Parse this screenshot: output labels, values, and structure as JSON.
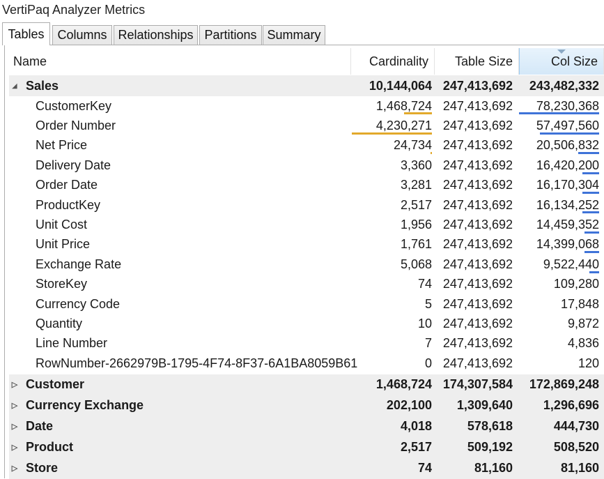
{
  "window": {
    "title": "VertiPaq Analyzer Metrics"
  },
  "tabs": [
    {
      "label": "Tables",
      "active": true
    },
    {
      "label": "Columns",
      "active": false
    },
    {
      "label": "Relationships",
      "active": false
    },
    {
      "label": "Partitions",
      "active": false
    },
    {
      "label": "Summary",
      "active": false
    }
  ],
  "columns": {
    "name": "Name",
    "cardinality": "Cardinality",
    "table_size": "Table Size",
    "col_size": "Col Size",
    "sorted_by": "Col Size",
    "sort_direction": "descending"
  },
  "expanded_table": {
    "name": "Sales",
    "expander_icon": "collapse-triangle-icon",
    "cardinality": "10,144,064",
    "table_size": "247,413,692",
    "col_size": "243,482,332",
    "columns": [
      {
        "name": "CustomerKey",
        "cardinality": "1,468,724",
        "table_size": "247,413,692",
        "col_size": "78,230,368",
        "card_bar": 0.347,
        "col_bar": 1.0
      },
      {
        "name": "Order Number",
        "cardinality": "4,230,271",
        "table_size": "247,413,692",
        "col_size": "57,497,560",
        "card_bar": 1.0,
        "col_bar": 0.735
      },
      {
        "name": "Net Price",
        "cardinality": "24,734",
        "table_size": "247,413,692",
        "col_size": "20,506,832",
        "card_bar": 0.006,
        "col_bar": 0.262
      },
      {
        "name": "Delivery Date",
        "cardinality": "3,360",
        "table_size": "247,413,692",
        "col_size": "16,420,200",
        "card_bar": 0.0,
        "col_bar": 0.21
      },
      {
        "name": "Order Date",
        "cardinality": "3,281",
        "table_size": "247,413,692",
        "col_size": "16,170,304",
        "card_bar": 0.0,
        "col_bar": 0.207
      },
      {
        "name": "ProductKey",
        "cardinality": "2,517",
        "table_size": "247,413,692",
        "col_size": "16,134,252",
        "card_bar": 0.0,
        "col_bar": 0.206
      },
      {
        "name": "Unit Cost",
        "cardinality": "1,956",
        "table_size": "247,413,692",
        "col_size": "14,459,352",
        "card_bar": 0.0,
        "col_bar": 0.185
      },
      {
        "name": "Unit Price",
        "cardinality": "1,761",
        "table_size": "247,413,692",
        "col_size": "14,399,068",
        "card_bar": 0.0,
        "col_bar": 0.184
      },
      {
        "name": "Exchange Rate",
        "cardinality": "5,068",
        "table_size": "247,413,692",
        "col_size": "9,522,440",
        "card_bar": 0.0,
        "col_bar": 0.122
      },
      {
        "name": "StoreKey",
        "cardinality": "74",
        "table_size": "247,413,692",
        "col_size": "109,280",
        "card_bar": 0.0,
        "col_bar": 0.0
      },
      {
        "name": "Currency Code",
        "cardinality": "5",
        "table_size": "247,413,692",
        "col_size": "17,848",
        "card_bar": 0.0,
        "col_bar": 0.0
      },
      {
        "name": "Quantity",
        "cardinality": "10",
        "table_size": "247,413,692",
        "col_size": "9,872",
        "card_bar": 0.0,
        "col_bar": 0.0
      },
      {
        "name": "Line Number",
        "cardinality": "7",
        "table_size": "247,413,692",
        "col_size": "4,836",
        "card_bar": 0.0,
        "col_bar": 0.0
      },
      {
        "name": "RowNumber-2662979B-1795-4F74-8F37-6A1BA8059B61",
        "cardinality": "0",
        "table_size": "247,413,692",
        "col_size": "120",
        "card_bar": 0.0,
        "col_bar": 0.0
      }
    ]
  },
  "collapsed_tables": [
    {
      "name": "Customer",
      "cardinality": "1,468,724",
      "table_size": "174,307,584",
      "col_size": "172,869,248",
      "expander_icon": "expand-triangle-icon"
    },
    {
      "name": "Currency Exchange",
      "cardinality": "202,100",
      "table_size": "1,309,640",
      "col_size": "1,296,696",
      "expander_icon": "expand-triangle-icon"
    },
    {
      "name": "Date",
      "cardinality": "4,018",
      "table_size": "578,618",
      "col_size": "444,730",
      "expander_icon": "expand-triangle-icon"
    },
    {
      "name": "Product",
      "cardinality": "2,517",
      "table_size": "509,192",
      "col_size": "508,520",
      "expander_icon": "expand-triangle-icon"
    },
    {
      "name": "Store",
      "cardinality": "74",
      "table_size": "81,160",
      "col_size": "81,160",
      "expander_icon": "expand-triangle-icon"
    }
  ],
  "colors": {
    "cardinality_bar": "#e2a92b",
    "col_size_bar": "#3f73d8",
    "group_row_bg": "#eeeeee"
  }
}
